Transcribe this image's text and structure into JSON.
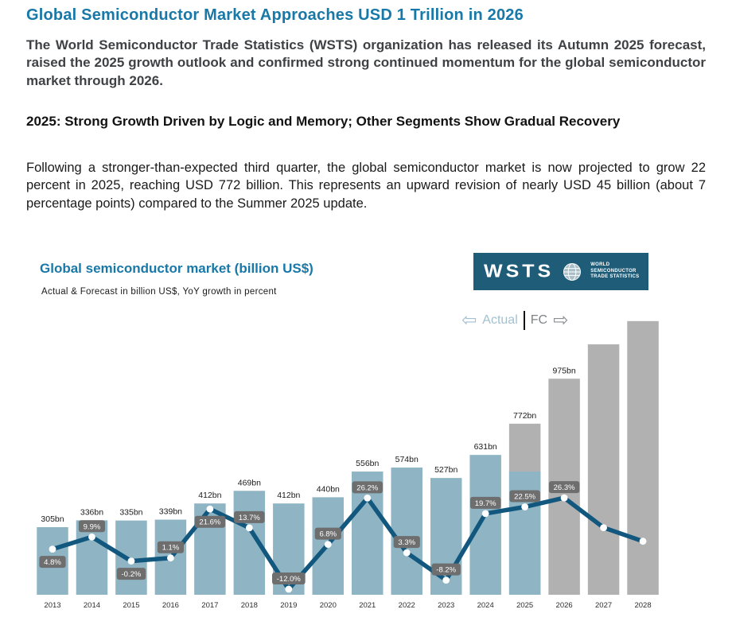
{
  "document": {
    "title": "Global Semiconductor Market Approaches USD 1 Trillion in 2026",
    "intro": "The World Semiconductor Trade Statistics (WSTS) organization has released its Autumn 2025 forecast, raised the 2025 growth outlook and confirmed strong continued momentum for the global semiconductor market through 2026.",
    "section_heading": "2025: Strong Growth Driven by Logic and Memory; Other Segments Show Gradual Recovery",
    "section_body": "Following a stronger-than-expected third quarter, the global semiconductor market is now projected to grow 22 percent in 2025, reaching USD 772 billion. This represents an upward revision of nearly USD 45 billion (about 7 percentage points) compared to the Summer 2025 update."
  },
  "chart": {
    "title": "Global semiconductor market (billion US$)",
    "subtitle": "Actual & Forecast in billion US$, YoY growth in percent",
    "legend": {
      "actual_arrow": "⇦",
      "actual": "Actual",
      "forecast": "FC",
      "forecast_arrow": "⇨"
    },
    "logo": {
      "wordmark": "WSTS",
      "lines": [
        "WORLD",
        "SEMICONDUCTOR",
        "TRADE STATISTICS"
      ]
    },
    "colors": {
      "accent": "#1878A8",
      "actual_bar": "#8FB5C5",
      "forecast_bar": "#B1B1B2",
      "line": "#11577E",
      "badge": "#6E6E6E",
      "logo_bg": "#1E5C78"
    }
  },
  "chart_data": {
    "type": "bar",
    "title": "Global semiconductor market (billion US$)",
    "subtitle": "Actual & Forecast in billion US$, YoY growth in percent",
    "categories": [
      "2013",
      "2014",
      "2015",
      "2016",
      "2017",
      "2018",
      "2019",
      "2020",
      "2021",
      "2022",
      "2023",
      "2024",
      "2025",
      "2026",
      "2027",
      "2028"
    ],
    "series": [
      {
        "name": "Market value (billion US$)",
        "type": "bar",
        "values": [
          305,
          336,
          335,
          339,
          412,
          469,
          412,
          440,
          556,
          574,
          527,
          631,
          772,
          975,
          1130,
          1235
        ],
        "labels": [
          "305bn",
          "336bn",
          "335bn",
          "339bn",
          "412bn",
          "469bn",
          "412bn",
          "440bn",
          "556bn",
          "574bn",
          "527bn",
          "631bn",
          "772bn",
          "975bn",
          "",
          ""
        ]
      },
      {
        "name": "YoY growth (percent)",
        "type": "line",
        "values": [
          4.8,
          9.9,
          -0.2,
          1.1,
          21.6,
          13.7,
          -12.0,
          6.8,
          26.2,
          3.3,
          -8.2,
          19.7,
          22.5,
          26.3,
          13.8,
          8.1
        ],
        "labels": [
          "4.8%",
          "9.9%",
          "-0.2%",
          "1.1%",
          "21.6%",
          "13.7%",
          "-12.0%",
          "6.8%",
          "26.2%",
          "3.3%",
          "-8.2%",
          "19.7%",
          "22.5%",
          "26.3%",
          "",
          ""
        ],
        "badge_side": [
          "below",
          "above",
          "below",
          "above",
          "below",
          "above",
          "above",
          "above",
          "above",
          "above",
          "above",
          "above",
          "above",
          "above",
          "",
          ""
        ]
      }
    ],
    "forecast_from_index": 13,
    "partial_actual": {
      "index": 12,
      "fraction": 0.72
    },
    "legend_position": "top-right",
    "grid": false,
    "notes": "2027 and 2028 bar values and growth points carry no labels in the source; their magnitudes are estimated from bar heights / line positions."
  }
}
